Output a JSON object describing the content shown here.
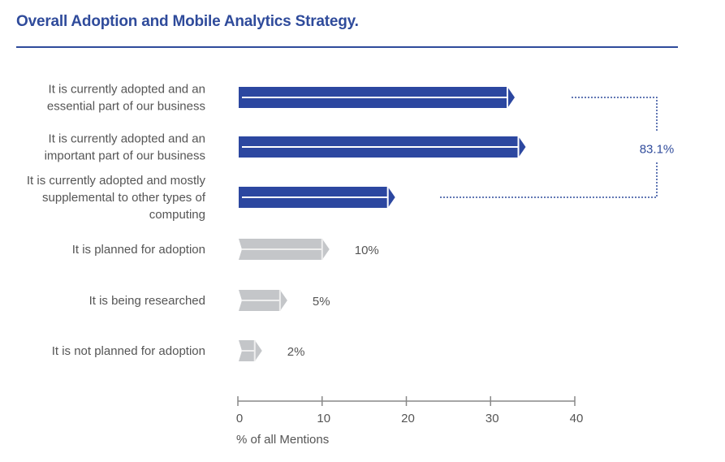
{
  "title": "Overall Adoption and Mobile Analytics Strategy.",
  "colors": {
    "title": "#2f4b9b",
    "bar_primary": "#2c47a0",
    "bar_secondary": "#c4c6c9",
    "text": "#555555",
    "axis": "#888888"
  },
  "chart_data": {
    "type": "bar",
    "orientation": "horizontal",
    "title": "Overall Adoption and Mobile Analytics Strategy.",
    "xlabel": "% of all Mentions",
    "ylabel": "",
    "xlim": [
      0,
      40
    ],
    "xticks": [
      0,
      10,
      20,
      30,
      40
    ],
    "xtick_labels": [
      "0",
      "10",
      "20",
      "30",
      "40"
    ],
    "categories": [
      [
        "It is currently adopted and an",
        "essential part of our business"
      ],
      [
        "It is currently adopted and an",
        "important part of our business"
      ],
      [
        "It is currently adopted and mostly",
        "supplemental to other types of",
        "computing"
      ],
      [
        "It is planned for adoption"
      ],
      [
        "It is being researched"
      ],
      [
        "It is not planned for adoption"
      ]
    ],
    "values": [
      32,
      33.3,
      17.8,
      10,
      5,
      2
    ],
    "value_labels": [
      "",
      "",
      "",
      "10%",
      "5%",
      "2%"
    ],
    "highlighted": [
      true,
      true,
      true,
      false,
      false,
      false
    ],
    "bracket": {
      "label": "83.1%",
      "spans": [
        0,
        2
      ]
    }
  }
}
